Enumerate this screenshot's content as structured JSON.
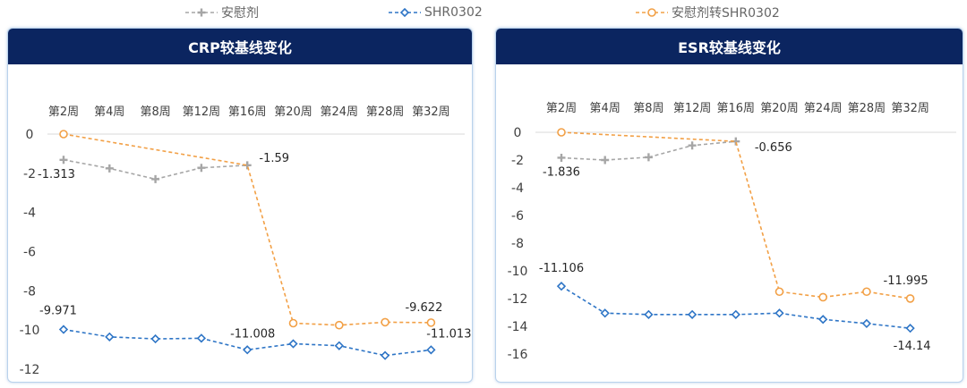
{
  "legend": {
    "items": [
      {
        "label": "安慰剂",
        "color": "#a6a6a6",
        "marker": "plus"
      },
      {
        "label": "SHR0302",
        "color": "#2e75c6",
        "marker": "diamond"
      },
      {
        "label": "安慰剂转SHR0302",
        "color": "#f2a046",
        "marker": "circle"
      }
    ]
  },
  "chart_data": [
    {
      "type": "line",
      "title": "CRP较基线变化",
      "categories": [
        "第2周",
        "第4周",
        "第8周",
        "第12周",
        "第16周",
        "第20周",
        "第24周",
        "第28周",
        "第32周"
      ],
      "ylim": [
        -12,
        0
      ],
      "yticks": [
        0,
        -2,
        -4,
        -6,
        -8,
        -10,
        -12
      ],
      "series": [
        {
          "name": "安慰剂",
          "values": [
            -1.313,
            -1.75,
            -2.3,
            -1.72,
            -1.59,
            null,
            null,
            null,
            null
          ]
        },
        {
          "name": "SHR0302",
          "values": [
            -9.971,
            -10.35,
            -10.45,
            -10.42,
            -11.008,
            -10.7,
            -10.8,
            -11.3,
            -11.013
          ]
        },
        {
          "name": "安慰剂转SHR0302",
          "values": [
            0,
            null,
            null,
            null,
            -1.59,
            -9.65,
            -9.75,
            -9.6,
            -9.622
          ]
        }
      ],
      "data_labels": [
        {
          "series": 0,
          "index": 0,
          "text": "-1.313"
        },
        {
          "series": 0,
          "index": 4,
          "text": "-1.59"
        },
        {
          "series": 1,
          "index": 0,
          "text": "-9.971"
        },
        {
          "series": 1,
          "index": 4,
          "text": "-11.008"
        },
        {
          "series": 1,
          "index": 8,
          "text": "-11.013"
        },
        {
          "series": 2,
          "index": 8,
          "text": "-9.622"
        }
      ]
    },
    {
      "type": "line",
      "title": "ESR较基线变化",
      "categories": [
        "第2周",
        "第4周",
        "第8周",
        "第12周",
        "第16周",
        "第20周",
        "第24周",
        "第28周",
        "第32周"
      ],
      "ylim": [
        -16,
        0
      ],
      "yticks": [
        0,
        -2,
        -4,
        -6,
        -8,
        -10,
        -12,
        -14,
        -16
      ],
      "series": [
        {
          "name": "安慰剂",
          "values": [
            -1.836,
            -2.0,
            -1.8,
            -0.95,
            -0.656,
            null,
            null,
            null,
            null
          ]
        },
        {
          "name": "SHR0302",
          "values": [
            -11.106,
            -13.05,
            -13.15,
            -13.15,
            -13.15,
            -13.05,
            -13.5,
            -13.8,
            -14.14
          ]
        },
        {
          "name": "安慰剂转SHR0302",
          "values": [
            0,
            null,
            null,
            null,
            -0.656,
            -11.5,
            -11.9,
            -11.5,
            -11.995
          ]
        }
      ],
      "data_labels": [
        {
          "series": 0,
          "index": 0,
          "text": "-1.836"
        },
        {
          "series": 0,
          "index": 4,
          "text": "-0.656"
        },
        {
          "series": 1,
          "index": 0,
          "text": "-11.106"
        },
        {
          "series": 1,
          "index": 8,
          "text": "-14.14"
        },
        {
          "series": 2,
          "index": 8,
          "text": "-11.995"
        }
      ]
    }
  ]
}
